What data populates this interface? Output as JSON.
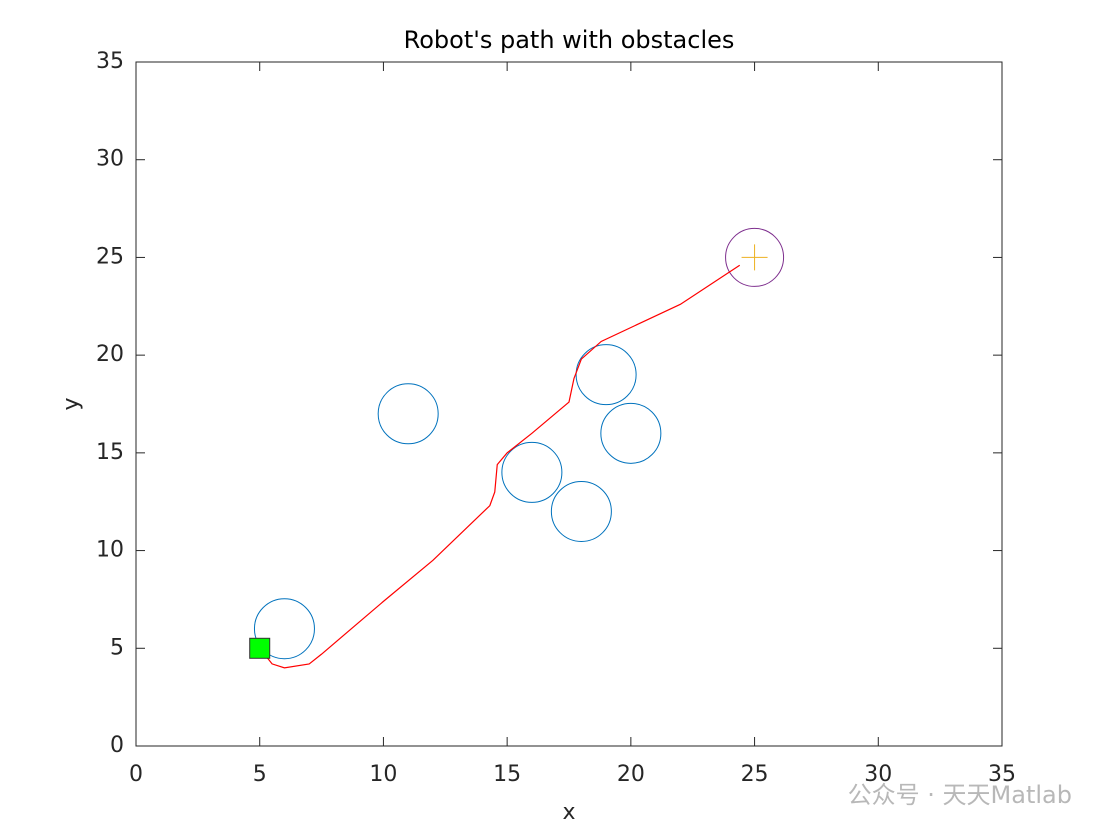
{
  "chart_data": {
    "type": "line",
    "title": "Robot's path with obstacles",
    "xlabel": "x",
    "ylabel": "y",
    "xlim": [
      0,
      35
    ],
    "ylim": [
      0,
      35
    ],
    "xticks": [
      0,
      5,
      10,
      15,
      20,
      25,
      30,
      35
    ],
    "yticks": [
      0,
      5,
      10,
      15,
      20,
      25,
      30,
      35
    ],
    "path": {
      "color": "#ff0000",
      "x": [
        5,
        5.5,
        6,
        7,
        7.5,
        10,
        12,
        14.3,
        14.5,
        14.6,
        15,
        16,
        17.5,
        17.7,
        18,
        18.8,
        22,
        24.4
      ],
      "y": [
        5,
        4.2,
        4,
        4.2,
        4.7,
        7.4,
        9.5,
        12.3,
        13,
        14.4,
        15,
        16,
        17.6,
        18.8,
        19.8,
        20.7,
        22.6,
        24.6
      ]
    },
    "obstacles": {
      "color": "#0072bd",
      "x": [
        6,
        11,
        16,
        18,
        19,
        20
      ],
      "y": [
        6,
        17,
        14,
        12,
        19,
        16
      ]
    },
    "goal": {
      "x": 25,
      "y": 25,
      "color": "#7e2f8e",
      "marker_color": "#edb120"
    },
    "start": {
      "x": 5,
      "y": 5,
      "color": "#00ff00"
    }
  },
  "watermark": "公众号 · 天天Matlab"
}
